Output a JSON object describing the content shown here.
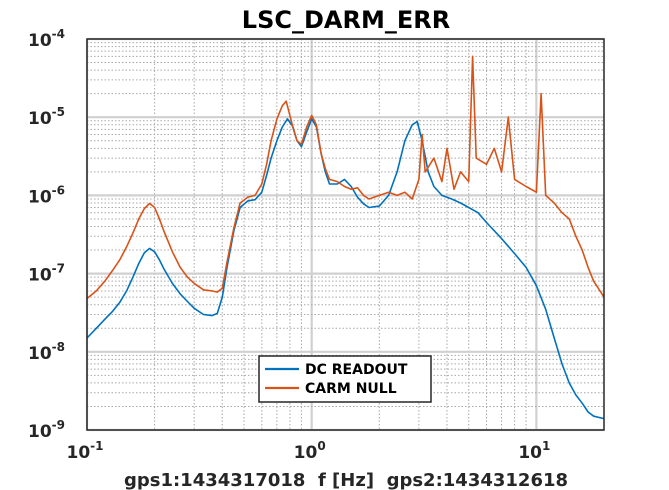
{
  "chart_data": {
    "type": "line",
    "title": "LSC_DARM_ERR",
    "xlabel": "gps1:1434317018  f [Hz]  gps2:1434312618",
    "ylabel": "",
    "x_scale": "log",
    "y_scale": "log",
    "xlim": [
      0.1,
      20
    ],
    "ylim": [
      1e-09,
      0.0001
    ],
    "grid": true,
    "legend_position": "bottom-center",
    "x_tick_labels": [
      {
        "value": 0.1,
        "base": "10",
        "exp": "-1"
      },
      {
        "value": 1,
        "base": "10",
        "exp": "0"
      },
      {
        "value": 10,
        "base": "10",
        "exp": "1"
      }
    ],
    "y_tick_labels": [
      {
        "value": 0.0001,
        "base": "10",
        "exp": "-4"
      },
      {
        "value": 1e-05,
        "base": "10",
        "exp": "-5"
      },
      {
        "value": 1e-06,
        "base": "10",
        "exp": "-6"
      },
      {
        "value": 1e-07,
        "base": "10",
        "exp": "-7"
      },
      {
        "value": 1e-08,
        "base": "10",
        "exp": "-8"
      },
      {
        "value": 1e-09,
        "base": "10",
        "exp": "-9"
      }
    ],
    "series": [
      {
        "name": "DC READOUT",
        "color": "#0072bd",
        "points": [
          [
            0.1,
            1.5e-08
          ],
          [
            0.11,
            2e-08
          ],
          [
            0.12,
            2.6e-08
          ],
          [
            0.13,
            3.3e-08
          ],
          [
            0.14,
            4.3e-08
          ],
          [
            0.15,
            6e-08
          ],
          [
            0.16,
            9e-08
          ],
          [
            0.17,
            1.35e-07
          ],
          [
            0.18,
            1.85e-07
          ],
          [
            0.19,
            2.1e-07
          ],
          [
            0.2,
            1.9e-07
          ],
          [
            0.21,
            1.5e-07
          ],
          [
            0.22,
            1.15e-07
          ],
          [
            0.24,
            7.5e-08
          ],
          [
            0.26,
            5.5e-08
          ],
          [
            0.28,
            4.4e-08
          ],
          [
            0.3,
            3.6e-08
          ],
          [
            0.33,
            3e-08
          ],
          [
            0.36,
            2.9e-08
          ],
          [
            0.38,
            3.1e-08
          ],
          [
            0.4,
            5e-08
          ],
          [
            0.42,
            1.2e-07
          ],
          [
            0.45,
            3.5e-07
          ],
          [
            0.48,
            7e-07
          ],
          [
            0.52,
            8.5e-07
          ],
          [
            0.56,
            8.8e-07
          ],
          [
            0.6,
            1.1e-06
          ],
          [
            0.63,
            1.8e-06
          ],
          [
            0.66,
            3e-06
          ],
          [
            0.7,
            5e-06
          ],
          [
            0.74,
            7.5e-06
          ],
          [
            0.78,
            9.5e-06
          ],
          [
            0.82,
            7.8e-06
          ],
          [
            0.86,
            5e-06
          ],
          [
            0.9,
            4.2e-06
          ],
          [
            0.95,
            6.5e-06
          ],
          [
            1.0,
            9.5e-06
          ],
          [
            1.05,
            7.5e-06
          ],
          [
            1.1,
            3.5e-06
          ],
          [
            1.15,
            2e-06
          ],
          [
            1.2,
            1.4e-06
          ],
          [
            1.3,
            1.4e-06
          ],
          [
            1.4,
            1.6e-06
          ],
          [
            1.5,
            1.3e-06
          ],
          [
            1.6,
            9.5e-07
          ],
          [
            1.7,
            7.8e-07
          ],
          [
            1.8,
            7e-07
          ],
          [
            2.0,
            7.3e-07
          ],
          [
            2.2,
            1e-06
          ],
          [
            2.4,
            2e-06
          ],
          [
            2.6,
            5e-06
          ],
          [
            2.8,
            8e-06
          ],
          [
            2.95,
            8.8e-06
          ],
          [
            3.1,
            5e-06
          ],
          [
            3.3,
            2e-06
          ],
          [
            3.5,
            1.3e-06
          ],
          [
            3.8,
            1e-06
          ],
          [
            4.2,
            9e-07
          ],
          [
            4.6,
            8e-07
          ],
          [
            5.0,
            7e-07
          ],
          [
            5.5,
            6e-07
          ],
          [
            6.0,
            4.5e-07
          ],
          [
            7.0,
            2.8e-07
          ],
          [
            8.0,
            1.8e-07
          ],
          [
            9.0,
            1.2e-07
          ],
          [
            10.0,
            7e-08
          ],
          [
            11.0,
            3.5e-08
          ],
          [
            12.0,
            1.5e-08
          ],
          [
            13.0,
            7e-09
          ],
          [
            14.0,
            4e-09
          ],
          [
            15.0,
            2.8e-09
          ],
          [
            16.0,
            2.2e-09
          ],
          [
            17.0,
            1.7e-09
          ],
          [
            18.0,
            1.5e-09
          ],
          [
            20.0,
            1.4e-09
          ]
        ]
      },
      {
        "name": "CARM NULL",
        "color": "#d95319",
        "points": [
          [
            0.1,
            4.8e-08
          ],
          [
            0.11,
            6e-08
          ],
          [
            0.12,
            8e-08
          ],
          [
            0.13,
            1.1e-07
          ],
          [
            0.14,
            1.5e-07
          ],
          [
            0.15,
            2.2e-07
          ],
          [
            0.16,
            3.3e-07
          ],
          [
            0.17,
            5e-07
          ],
          [
            0.18,
            6.8e-07
          ],
          [
            0.19,
            7.9e-07
          ],
          [
            0.2,
            7e-07
          ],
          [
            0.21,
            5e-07
          ],
          [
            0.22,
            3.5e-07
          ],
          [
            0.24,
            1.9e-07
          ],
          [
            0.26,
            1.2e-07
          ],
          [
            0.28,
            9e-08
          ],
          [
            0.3,
            7.5e-08
          ],
          [
            0.33,
            6.2e-08
          ],
          [
            0.36,
            6e-08
          ],
          [
            0.38,
            5.8e-08
          ],
          [
            0.4,
            6.5e-08
          ],
          [
            0.42,
            1.4e-07
          ],
          [
            0.45,
            3.8e-07
          ],
          [
            0.48,
            8e-07
          ],
          [
            0.52,
            9.5e-07
          ],
          [
            0.56,
            1e-06
          ],
          [
            0.6,
            1.4e-06
          ],
          [
            0.63,
            2.5e-06
          ],
          [
            0.66,
            5e-06
          ],
          [
            0.7,
            9.5e-06
          ],
          [
            0.74,
            1.4e-05
          ],
          [
            0.77,
            1.6e-05
          ],
          [
            0.82,
            8e-06
          ],
          [
            0.86,
            5e-06
          ],
          [
            0.9,
            4.5e-06
          ],
          [
            0.95,
            7.5e-06
          ],
          [
            1.0,
            1.05e-05
          ],
          [
            1.05,
            8e-06
          ],
          [
            1.1,
            3.5e-06
          ],
          [
            1.15,
            2.2e-06
          ],
          [
            1.2,
            1.6e-06
          ],
          [
            1.3,
            1.5e-06
          ],
          [
            1.4,
            1.3e-06
          ],
          [
            1.5,
            1.2e-06
          ],
          [
            1.6,
            1.25e-06
          ],
          [
            1.7,
            1e-06
          ],
          [
            1.8,
            9e-07
          ],
          [
            2.0,
            1e-06
          ],
          [
            2.2,
            1.1e-06
          ],
          [
            2.4,
            1e-06
          ],
          [
            2.6,
            1.1e-06
          ],
          [
            2.8,
            9e-07
          ],
          [
            3.0,
            1.6e-06
          ],
          [
            3.1,
            6e-06
          ],
          [
            3.2,
            2e-06
          ],
          [
            3.5,
            3e-06
          ],
          [
            3.8,
            1.5e-06
          ],
          [
            4.0,
            4e-06
          ],
          [
            4.3,
            1.2e-06
          ],
          [
            4.6,
            2e-06
          ],
          [
            5.0,
            1.5e-06
          ],
          [
            5.2,
            6e-05
          ],
          [
            5.4,
            3e-06
          ],
          [
            6.0,
            2.5e-06
          ],
          [
            6.5,
            4e-06
          ],
          [
            7.0,
            2e-06
          ],
          [
            7.5,
            1e-05
          ],
          [
            8.0,
            1.6e-06
          ],
          [
            9.0,
            1.3e-06
          ],
          [
            10.0,
            1.1e-06
          ],
          [
            10.5,
            2e-05
          ],
          [
            11.0,
            1e-06
          ],
          [
            12.0,
            8e-07
          ],
          [
            13.0,
            6e-07
          ],
          [
            14.0,
            5e-07
          ],
          [
            15.0,
            3e-07
          ],
          [
            16.0,
            2e-07
          ],
          [
            17.0,
            1.2e-07
          ],
          [
            18.0,
            8e-08
          ],
          [
            20.0,
            5e-08
          ]
        ]
      }
    ]
  }
}
